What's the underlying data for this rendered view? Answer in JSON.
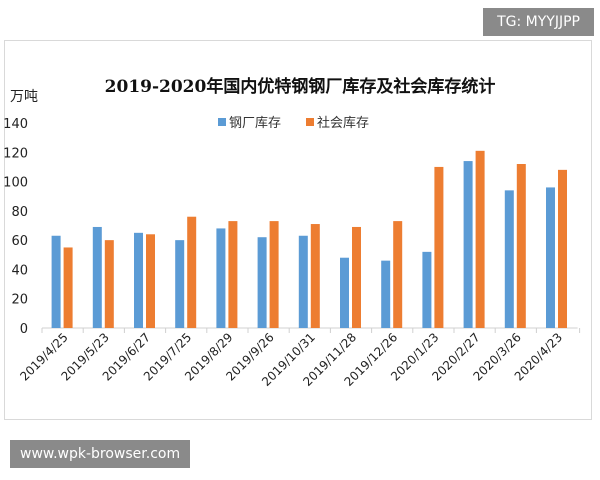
{
  "badge": "TG: MYYJJPP",
  "footer": "www.wpk-browser.com",
  "chart_data": {
    "type": "bar",
    "title": "2019-2020年国内优特钢钢厂库存及社会库存统计",
    "ylabel": "万吨",
    "ylim": [
      0,
      140
    ],
    "yticks": [
      0,
      20,
      40,
      60,
      80,
      100,
      120,
      140
    ],
    "grid": false,
    "legend": "top",
    "categories": [
      "2019/4/25",
      "2019/5/23",
      "2019/6/27",
      "2019/7/25",
      "2019/8/29",
      "2019/9/26",
      "2019/10/31",
      "2019/11/28",
      "2019/12/26",
      "2020/1/23",
      "2020/2/27",
      "2020/3/26",
      "2020/4/23"
    ],
    "series": [
      {
        "name": "钢厂库存",
        "color": "#5b9bd5",
        "values": [
          63,
          69,
          65,
          60,
          68,
          62,
          63,
          48,
          46,
          52,
          114,
          94,
          96
        ]
      },
      {
        "name": "社会库存",
        "color": "#ed7d31",
        "values": [
          55,
          60,
          64,
          76,
          73,
          73,
          71,
          69,
          73,
          110,
          121,
          112,
          108
        ]
      }
    ]
  }
}
